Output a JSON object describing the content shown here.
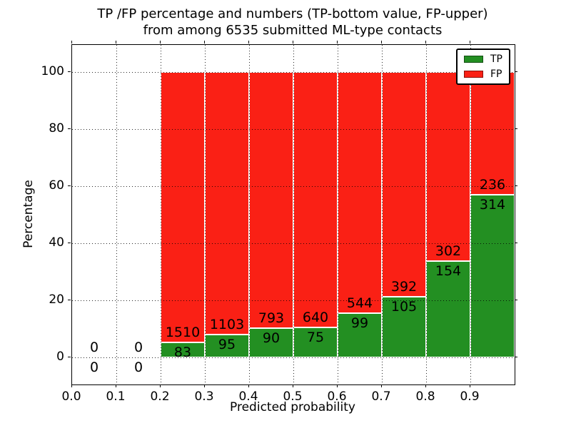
{
  "figure": {
    "title_line1": "TP /FP percentage and numbers (TP-bottom value, FP-upper)",
    "title_line2": "from among 6535 submitted ML-type contacts"
  },
  "chart_data": {
    "type": "bar",
    "stacked": true,
    "normalized": "percent",
    "title": "TP /FP percentage and numbers (TP-bottom value, FP-upper)\nfrom among 6535 submitted ML-type contacts",
    "xlabel": "Predicted probability",
    "ylabel": "Percentage",
    "xlim": [
      0.0,
      1.0
    ],
    "ylim": [
      -9.5,
      109.5
    ],
    "grid": "dotted",
    "legend_position": "upper right",
    "total_contacts": 6535,
    "xticklabels": [
      "0.0",
      "0.1",
      "0.2",
      "0.3",
      "0.4",
      "0.5",
      "0.6",
      "0.7",
      "0.8",
      "0.9"
    ],
    "yticklabels": [
      "0",
      "20",
      "40",
      "60",
      "80",
      "100"
    ],
    "series": [
      {
        "name": "TP",
        "color": "#238f22"
      },
      {
        "name": "FP",
        "color": "#fa2015"
      }
    ],
    "bins": [
      {
        "range": [
          0.0,
          0.1
        ],
        "tp": 0,
        "fp": 0
      },
      {
        "range": [
          0.1,
          0.2
        ],
        "tp": 0,
        "fp": 0
      },
      {
        "range": [
          0.2,
          0.3
        ],
        "tp": 83,
        "fp": 1510
      },
      {
        "range": [
          0.3,
          0.4
        ],
        "tp": 95,
        "fp": 1103
      },
      {
        "range": [
          0.4,
          0.5
        ],
        "tp": 90,
        "fp": 793
      },
      {
        "range": [
          0.5,
          0.6
        ],
        "tp": 75,
        "fp": 640
      },
      {
        "range": [
          0.6,
          0.7
        ],
        "tp": 99,
        "fp": 544
      },
      {
        "range": [
          0.7,
          0.8
        ],
        "tp": 105,
        "fp": 392
      },
      {
        "range": [
          0.8,
          0.9
        ],
        "tp": 154,
        "fp": 302
      },
      {
        "range": [
          0.9,
          1.0
        ],
        "tp": 314,
        "fp": 236
      }
    ]
  }
}
